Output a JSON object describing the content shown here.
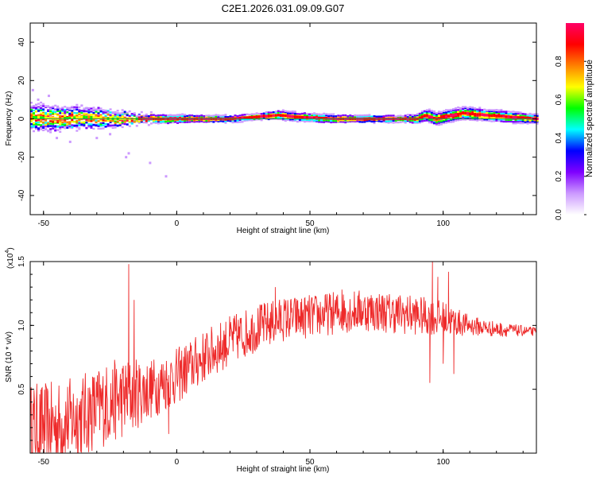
{
  "figure_title": "C2E1.2026.031.09.09.G07",
  "chart_data": [
    {
      "type": "heatmap",
      "title": "C2E1.2026.031.09.09.G07",
      "xlabel": "Height of straight line (km)",
      "ylabel": "Frequency (Hz)",
      "xlim": [
        -55,
        135
      ],
      "ylim": [
        -50,
        50
      ],
      "xticks": [
        -50,
        0,
        50,
        100
      ],
      "yticks": [
        40,
        20,
        0,
        -20,
        -40
      ],
      "colorbar": {
        "label": "Normalized spectral amplitude",
        "range": [
          0,
          1
        ],
        "ticks": [
          0.0,
          0.2,
          0.4,
          0.6,
          0.8
        ],
        "stops": [
          "#ffffff",
          "#cc99ff",
          "#7f00ff",
          "#0000ff",
          "#00ffff",
          "#00ff00",
          "#ffff00",
          "#ff8000",
          "#ff0000",
          "#ff0066"
        ]
      },
      "ridge": {
        "description": "dominant frequency near 0 Hz across all heights",
        "center_hz": [
          {
            "x": -55,
            "y": 1
          },
          {
            "x": -45,
            "y": 0
          },
          {
            "x": -35,
            "y": 1
          },
          {
            "x": -25,
            "y": 0
          },
          {
            "x": -15,
            "y": 0
          },
          {
            "x": 0,
            "y": 0
          },
          {
            "x": 20,
            "y": 0
          },
          {
            "x": 38,
            "y": 2
          },
          {
            "x": 45,
            "y": 1
          },
          {
            "x": 60,
            "y": 0
          },
          {
            "x": 90,
            "y": 0
          },
          {
            "x": 93,
            "y": 2
          },
          {
            "x": 97,
            "y": 0
          },
          {
            "x": 107,
            "y": 3
          },
          {
            "x": 115,
            "y": 2
          },
          {
            "x": 135,
            "y": 0
          }
        ],
        "spread_hz": [
          {
            "x": -55,
            "y": 8
          },
          {
            "x": -30,
            "y": 6
          },
          {
            "x": -15,
            "y": 3
          },
          {
            "x": 30,
            "y": 2
          },
          {
            "x": 40,
            "y": 3
          },
          {
            "x": 85,
            "y": 2
          },
          {
            "x": 95,
            "y": 4
          },
          {
            "x": 110,
            "y": 4
          },
          {
            "x": 135,
            "y": 3
          }
        ]
      },
      "outliers": [
        {
          "x": -54,
          "y": 15
        },
        {
          "x": -52,
          "y": 10
        },
        {
          "x": -48,
          "y": 12
        },
        {
          "x": -45,
          "y": -10
        },
        {
          "x": -40,
          "y": -12
        },
        {
          "x": -30,
          "y": -10
        },
        {
          "x": -25,
          "y": -8
        },
        {
          "x": -18,
          "y": -18
        },
        {
          "x": -19,
          "y": -20
        },
        {
          "x": -10,
          "y": -23
        },
        {
          "x": -4,
          "y": -30
        }
      ]
    },
    {
      "type": "line",
      "xlabel": "Height of straight line (km)",
      "ylabel": "SNR (10 * v/v)",
      "y_exponent": "(x10",
      "y_exponent_power": "4",
      "y_exponent_close": ")",
      "xlim": [
        -55,
        135
      ],
      "ylim": [
        0,
        1.5
      ],
      "xticks": [
        -50,
        0,
        50,
        100
      ],
      "yticks": [
        0.5,
        1.0,
        1.5
      ],
      "color": "#ee2a2a",
      "series": [
        {
          "name": "SNR",
          "trend": [
            {
              "x": -55,
              "y": 0.2
            },
            {
              "x": -45,
              "y": 0.22
            },
            {
              "x": -35,
              "y": 0.3
            },
            {
              "x": -25,
              "y": 0.4
            },
            {
              "x": -18,
              "y": 0.45
            },
            {
              "x": -10,
              "y": 0.5
            },
            {
              "x": 0,
              "y": 0.6
            },
            {
              "x": 10,
              "y": 0.75
            },
            {
              "x": 20,
              "y": 0.88
            },
            {
              "x": 30,
              "y": 0.98
            },
            {
              "x": 40,
              "y": 1.05
            },
            {
              "x": 50,
              "y": 1.07
            },
            {
              "x": 60,
              "y": 1.1
            },
            {
              "x": 70,
              "y": 1.12
            },
            {
              "x": 80,
              "y": 1.1
            },
            {
              "x": 90,
              "y": 1.08
            },
            {
              "x": 100,
              "y": 1.05
            },
            {
              "x": 110,
              "y": 1.0
            },
            {
              "x": 120,
              "y": 0.97
            },
            {
              "x": 135,
              "y": 0.95
            }
          ],
          "noise": [
            {
              "x": -55,
              "y": 0.22
            },
            {
              "x": -20,
              "y": 0.2
            },
            {
              "x": -10,
              "y": 0.15
            },
            {
              "x": 10,
              "y": 0.13
            },
            {
              "x": 40,
              "y": 0.11
            },
            {
              "x": 85,
              "y": 0.1
            },
            {
              "x": 100,
              "y": 0.09
            },
            {
              "x": 110,
              "y": 0.05
            },
            {
              "x": 135,
              "y": 0.02
            }
          ],
          "spikes": [
            {
              "x": -18,
              "y": 1.48
            },
            {
              "x": -17,
              "y": 0.3
            },
            {
              "x": -16,
              "y": 1.2
            },
            {
              "x": -3,
              "y": 0.15
            },
            {
              "x": 37,
              "y": 1.3
            },
            {
              "x": 62,
              "y": 1.28
            },
            {
              "x": 95,
              "y": 0.55
            },
            {
              "x": 96,
              "y": 1.5
            },
            {
              "x": 98,
              "y": 1.38
            },
            {
              "x": 100,
              "y": 0.7
            },
            {
              "x": 102,
              "y": 1.42
            },
            {
              "x": 104,
              "y": 0.62
            }
          ]
        }
      ]
    }
  ]
}
